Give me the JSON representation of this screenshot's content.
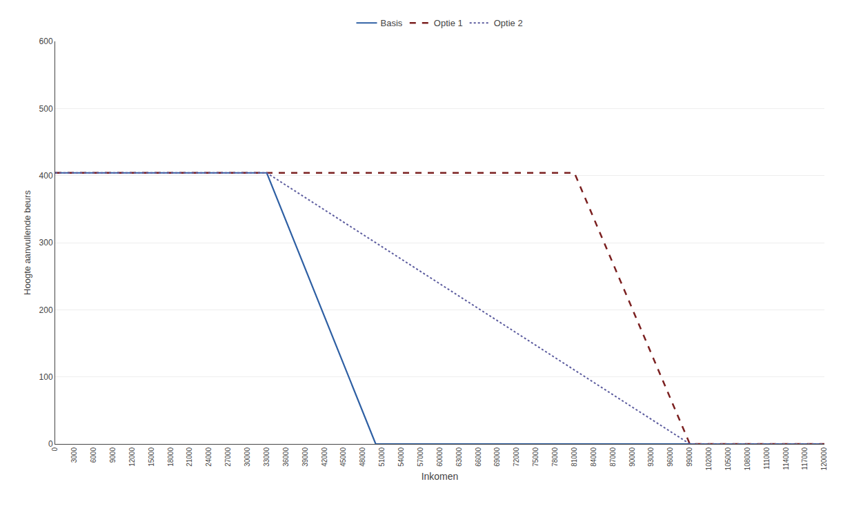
{
  "chart_data": {
    "type": "line",
    "xlabel": "Inkomen",
    "ylabel": "Hoogte aanvullende beurs",
    "xlim": [
      0,
      120000
    ],
    "ylim": [
      0,
      600
    ],
    "xticks": [
      0,
      3000,
      6000,
      9000,
      12000,
      15000,
      18000,
      21000,
      24000,
      27000,
      30000,
      33000,
      36000,
      39000,
      42000,
      45000,
      48000,
      51000,
      54000,
      57000,
      60000,
      63000,
      66000,
      69000,
      72000,
      75000,
      78000,
      81000,
      84000,
      87000,
      90000,
      93000,
      96000,
      99000,
      102000,
      105000,
      108000,
      111000,
      114000,
      117000,
      120000
    ],
    "yticks": [
      0,
      100,
      200,
      300,
      400,
      500,
      600
    ],
    "grid": "y",
    "legend": "top",
    "series": [
      {
        "name": "Basis",
        "color": "#2e5fa3",
        "line_style": "solid",
        "x": [
          0,
          33000,
          33000,
          50000,
          50000,
          120000
        ],
        "values": [
          404,
          404,
          404,
          0,
          0,
          0
        ]
      },
      {
        "name": "Optie 1",
        "color": "#7b2020",
        "line_style": "dash",
        "x": [
          0,
          81000,
          81000,
          99000,
          99000,
          120000
        ],
        "values": [
          404,
          404,
          404,
          0,
          0,
          0
        ]
      },
      {
        "name": "Optie 2",
        "color": "#5b5b9e",
        "line_style": "dot",
        "x": [
          0,
          33000,
          99000,
          99000,
          120000
        ],
        "values": [
          404,
          404,
          0,
          0,
          0
        ]
      }
    ]
  }
}
